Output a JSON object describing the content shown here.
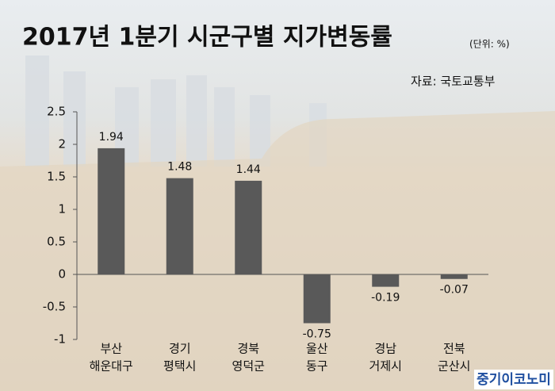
{
  "chart_data": {
    "type": "bar",
    "title": "2017년 1분기 시군구별 지가변동률",
    "subtitle": "(단위: %)",
    "source": "자료: 국토교통부",
    "watermark": "중기이코노미",
    "categories": [
      [
        "부산",
        "해운대구"
      ],
      [
        "경기",
        "평택시"
      ],
      [
        "경북",
        "영덕군"
      ],
      [
        "울산",
        "동구"
      ],
      [
        "경남",
        "거제시"
      ],
      [
        "전북",
        "군산시"
      ]
    ],
    "values": [
      1.94,
      1.48,
      1.44,
      -0.75,
      -0.19,
      -0.07
    ],
    "color": "#595959",
    "ylim": [
      -1,
      2.5
    ],
    "yticks": [
      -1,
      -0.5,
      0,
      0.5,
      1,
      1.5,
      2,
      2.5
    ],
    "grid": false
  }
}
